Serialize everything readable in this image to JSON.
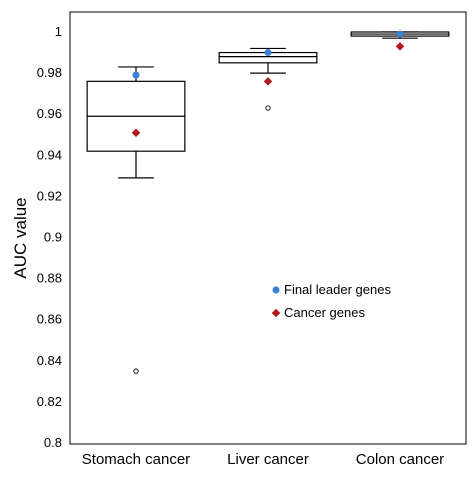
{
  "chart_data": {
    "type": "box",
    "ylabel": "AUC value",
    "ylim": [
      0.8,
      1.0
    ],
    "yticks": [
      "0.8",
      "0.82",
      "0.84",
      "0.86",
      "0.88",
      "0.9",
      "0.92",
      "0.94",
      "0.96",
      "0.98",
      "1"
    ],
    "categories": [
      "Stomach cancer",
      "Liver cancer",
      "Colon cancer"
    ],
    "boxes": [
      {
        "whisker_low": 0.929,
        "q1": 0.942,
        "median": 0.959,
        "q3": 0.976,
        "whisker_high": 0.983,
        "outliers": [
          0.835
        ]
      },
      {
        "whisker_low": 0.98,
        "q1": 0.985,
        "median": 0.988,
        "q3": 0.99,
        "whisker_high": 0.992,
        "outliers": [
          0.963
        ]
      },
      {
        "whisker_low": 0.997,
        "q1": 0.998,
        "median": 0.999,
        "q3": 1.0,
        "whisker_high": 1.0,
        "outliers": []
      }
    ],
    "series": [
      {
        "name": "Final leader genes",
        "marker": "circle",
        "color": "#3a7fd5",
        "values": [
          0.979,
          0.99,
          0.999
        ]
      },
      {
        "name": "Cancer genes",
        "marker": "diamond",
        "color": "#b01c1c",
        "values": [
          0.951,
          0.976,
          0.993
        ]
      }
    ],
    "legend_position": "center-right"
  }
}
